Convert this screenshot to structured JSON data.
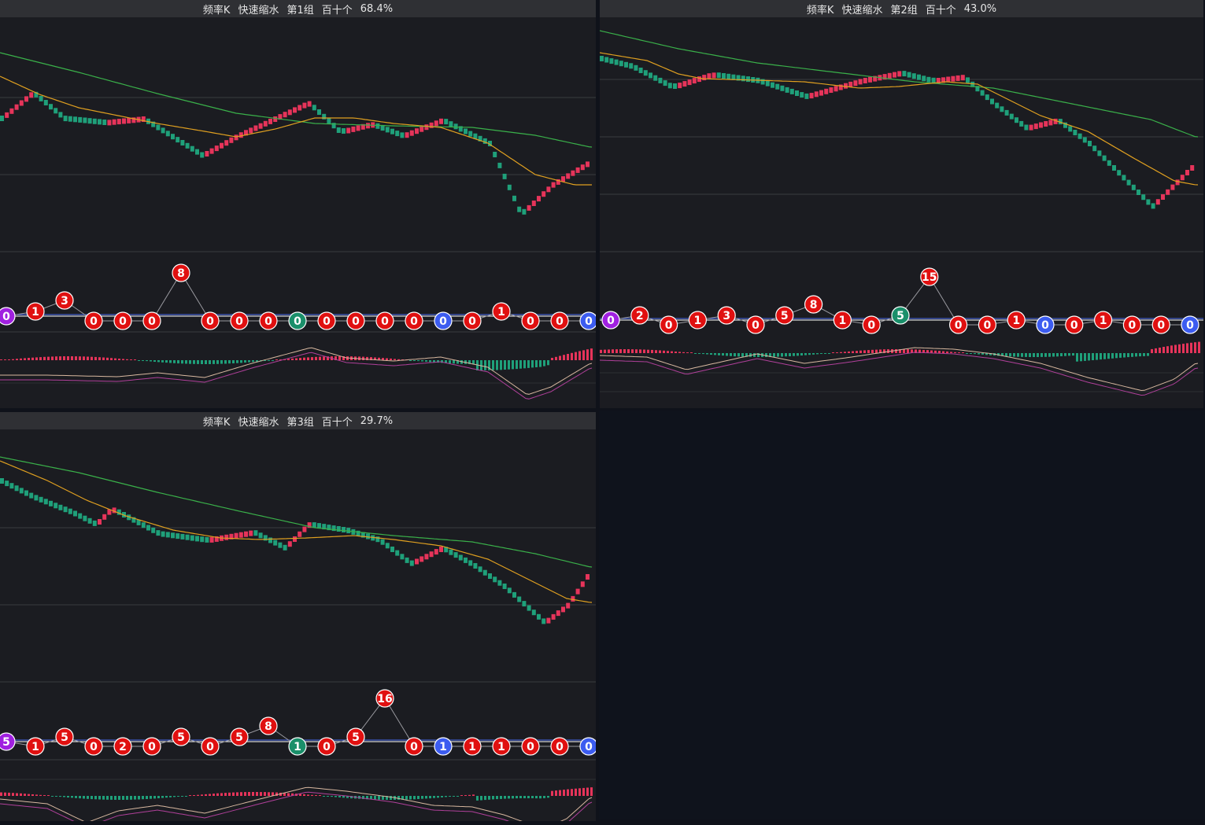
{
  "panels": [
    {
      "title_parts": [
        "频率K",
        "快速缩水",
        "第1组",
        "百十个",
        "68.4%"
      ]
    },
    {
      "title_parts": [
        "频率K",
        "快速缩水",
        "第2组",
        "百十个",
        "43.0%"
      ]
    },
    {
      "title_parts": [
        "频率K",
        "快速缩水",
        "第3组",
        "百十个",
        "29.7%"
      ]
    }
  ],
  "chart_data": [
    {
      "type": "candlestick+indicator",
      "title": "频率K 快速缩水 第1组 百十个 68.4%",
      "bubbles": [
        0,
        1,
        3,
        0,
        0,
        0,
        8,
        0,
        0,
        0,
        0,
        0,
        0,
        0,
        0,
        0,
        0,
        1,
        0,
        0,
        0
      ],
      "bubble_colors": [
        "purple",
        "red",
        "red",
        "red",
        "red",
        "red",
        "red",
        "red",
        "red",
        "red",
        "green",
        "red",
        "red",
        "red",
        "red",
        "blue",
        "red",
        "red",
        "red",
        "red",
        "blue"
      ],
      "bubble_pos": [
        "mid",
        "up",
        "up2",
        "down",
        "down",
        "down",
        "top",
        "down",
        "down",
        "down",
        "down",
        "down",
        "down",
        "down",
        "down",
        "down",
        "down",
        "up",
        "down",
        "down",
        "down"
      ]
    },
    {
      "type": "candlestick+indicator",
      "title": "频率K 快速缩水 第2组 百十个 43.0%",
      "bubbles": [
        0,
        2,
        0,
        1,
        3,
        0,
        5,
        8,
        1,
        0,
        5,
        15,
        0,
        0,
        1,
        0,
        0,
        1,
        0,
        0,
        0
      ],
      "bubble_colors": [
        "purple",
        "red",
        "red",
        "red",
        "red",
        "red",
        "red",
        "red",
        "red",
        "red",
        "green",
        "red",
        "red",
        "red",
        "red",
        "blue",
        "red",
        "red",
        "red",
        "red",
        "blue"
      ],
      "bubble_pos": [
        "mid",
        "up",
        "down",
        "mid",
        "up",
        "down",
        "up",
        "up2",
        "mid",
        "down",
        "up",
        "top",
        "down",
        "down",
        "mid",
        "down",
        "down",
        "mid",
        "down",
        "down",
        "down"
      ]
    },
    {
      "type": "candlestick+indicator",
      "title": "频率K 快速缩水 第3组 百十个 29.7%",
      "bubbles": [
        5,
        1,
        5,
        0,
        2,
        0,
        5,
        0,
        5,
        8,
        1,
        0,
        5,
        16,
        0,
        1,
        1,
        1,
        0,
        0,
        0
      ],
      "bubble_colors": [
        "purple",
        "red",
        "red",
        "red",
        "red",
        "red",
        "red",
        "red",
        "red",
        "red",
        "green",
        "red",
        "red",
        "red",
        "red",
        "blue",
        "red",
        "red",
        "red",
        "red",
        "blue"
      ],
      "bubble_pos": [
        "mid",
        "down",
        "up",
        "down",
        "down",
        "down",
        "up",
        "down",
        "up",
        "up2",
        "down",
        "down",
        "up",
        "top",
        "down",
        "down",
        "down",
        "down",
        "down",
        "down",
        "down"
      ]
    }
  ],
  "colors": {
    "up": "#e6345a",
    "down": "#1fa07a",
    "ma_short": "#e0a020",
    "ma_long": "#3ab04a",
    "bubble_red": "#e01010",
    "bubble_green": "#1a8f6a",
    "bubble_blue": "#3c5cf0",
    "bubble_purple": "#a020e0"
  }
}
